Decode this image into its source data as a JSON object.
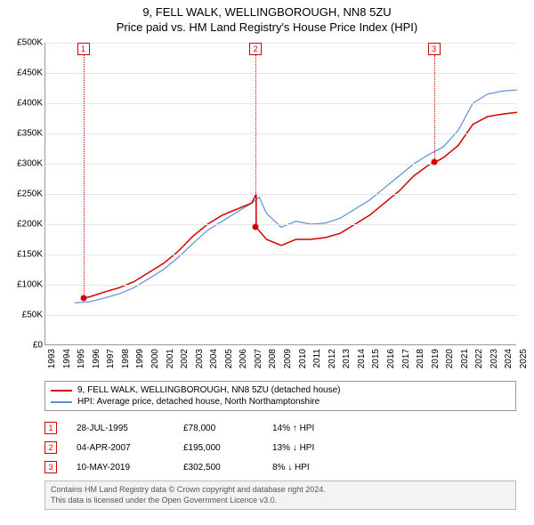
{
  "title": {
    "line1": "9, FELL WALK, WELLINGBOROUGH, NN8 5ZU",
    "line2": "Price paid vs. HM Land Registry's House Price Index (HPI)"
  },
  "chart": {
    "type": "line",
    "x_years": [
      1993,
      1994,
      1995,
      1996,
      1997,
      1998,
      1999,
      2000,
      2001,
      2002,
      2003,
      2004,
      2005,
      2006,
      2007,
      2008,
      2009,
      2010,
      2011,
      2012,
      2013,
      2014,
      2015,
      2016,
      2017,
      2018,
      2019,
      2020,
      2021,
      2022,
      2023,
      2024,
      2025
    ],
    "xlim": [
      1993,
      2025
    ],
    "ylim": [
      0,
      500
    ],
    "ytick_step": 50,
    "ytick_prefix": "£",
    "ytick_suffix": "K",
    "grid_color": "#e6e6e6",
    "axis_color": "#999999",
    "background_color": "#ffffff",
    "series": {
      "price_paid": {
        "label": "9, FELL WALK, WELLINGBOROUGH, NN8 5ZU (detached house)",
        "color": "#d40000",
        "line_width": 1.5,
        "data": [
          [
            1995.6,
            78
          ],
          [
            1996,
            80
          ],
          [
            1997,
            88
          ],
          [
            1998,
            95
          ],
          [
            1999,
            105
          ],
          [
            2000,
            120
          ],
          [
            2001,
            135
          ],
          [
            2002,
            155
          ],
          [
            2003,
            180
          ],
          [
            2004,
            200
          ],
          [
            2005,
            215
          ],
          [
            2006,
            225
          ],
          [
            2007,
            235
          ],
          [
            2007.3,
            250
          ],
          [
            2007.3,
            195
          ],
          [
            2008,
            175
          ],
          [
            2009,
            165
          ],
          [
            2010,
            175
          ],
          [
            2011,
            175
          ],
          [
            2012,
            178
          ],
          [
            2013,
            185
          ],
          [
            2014,
            200
          ],
          [
            2015,
            215
          ],
          [
            2016,
            235
          ],
          [
            2017,
            255
          ],
          [
            2018,
            280
          ],
          [
            2019,
            298
          ],
          [
            2019.4,
            302
          ],
          [
            2020,
            310
          ],
          [
            2021,
            330
          ],
          [
            2022,
            365
          ],
          [
            2023,
            378
          ],
          [
            2024,
            382
          ],
          [
            2025,
            385
          ]
        ]
      },
      "hpi": {
        "label": "HPI: Average price, detached house, North Northamptonshire",
        "color": "#5b8fd6",
        "line_width": 1.2,
        "data": [
          [
            1995,
            70
          ],
          [
            1996,
            72
          ],
          [
            1997,
            78
          ],
          [
            1998,
            85
          ],
          [
            1999,
            95
          ],
          [
            2000,
            110
          ],
          [
            2001,
            125
          ],
          [
            2002,
            145
          ],
          [
            2003,
            168
          ],
          [
            2004,
            190
          ],
          [
            2005,
            205
          ],
          [
            2006,
            220
          ],
          [
            2007,
            235
          ],
          [
            2007.5,
            245
          ],
          [
            2008,
            218
          ],
          [
            2009,
            195
          ],
          [
            2010,
            205
          ],
          [
            2011,
            200
          ],
          [
            2012,
            202
          ],
          [
            2013,
            210
          ],
          [
            2014,
            225
          ],
          [
            2015,
            240
          ],
          [
            2016,
            260
          ],
          [
            2017,
            280
          ],
          [
            2018,
            300
          ],
          [
            2019,
            315
          ],
          [
            2020,
            328
          ],
          [
            2021,
            355
          ],
          [
            2022,
            400
          ],
          [
            2023,
            415
          ],
          [
            2024,
            420
          ],
          [
            2025,
            422
          ]
        ]
      }
    },
    "markers": [
      {
        "n": "1",
        "year": 1995.57,
        "date": "28-JUL-1995",
        "price_k": 78,
        "price_label": "£78,000",
        "pct": "14% ↑ HPI",
        "color": "#d40000"
      },
      {
        "n": "2",
        "year": 2007.26,
        "date": "04-APR-2007",
        "price_k": 195,
        "price_label": "£195,000",
        "pct": "13% ↓ HPI",
        "color": "#d40000"
      },
      {
        "n": "3",
        "year": 2019.36,
        "date": "10-MAY-2019",
        "price_k": 302.5,
        "price_label": "£302,500",
        "pct": "8% ↓ HPI",
        "color": "#d40000"
      }
    ]
  },
  "footer": {
    "line1": "Contains HM Land Registry data © Crown copyright and database right 2024.",
    "line2": "This data is licensed under the Open Government Licence v3.0."
  }
}
